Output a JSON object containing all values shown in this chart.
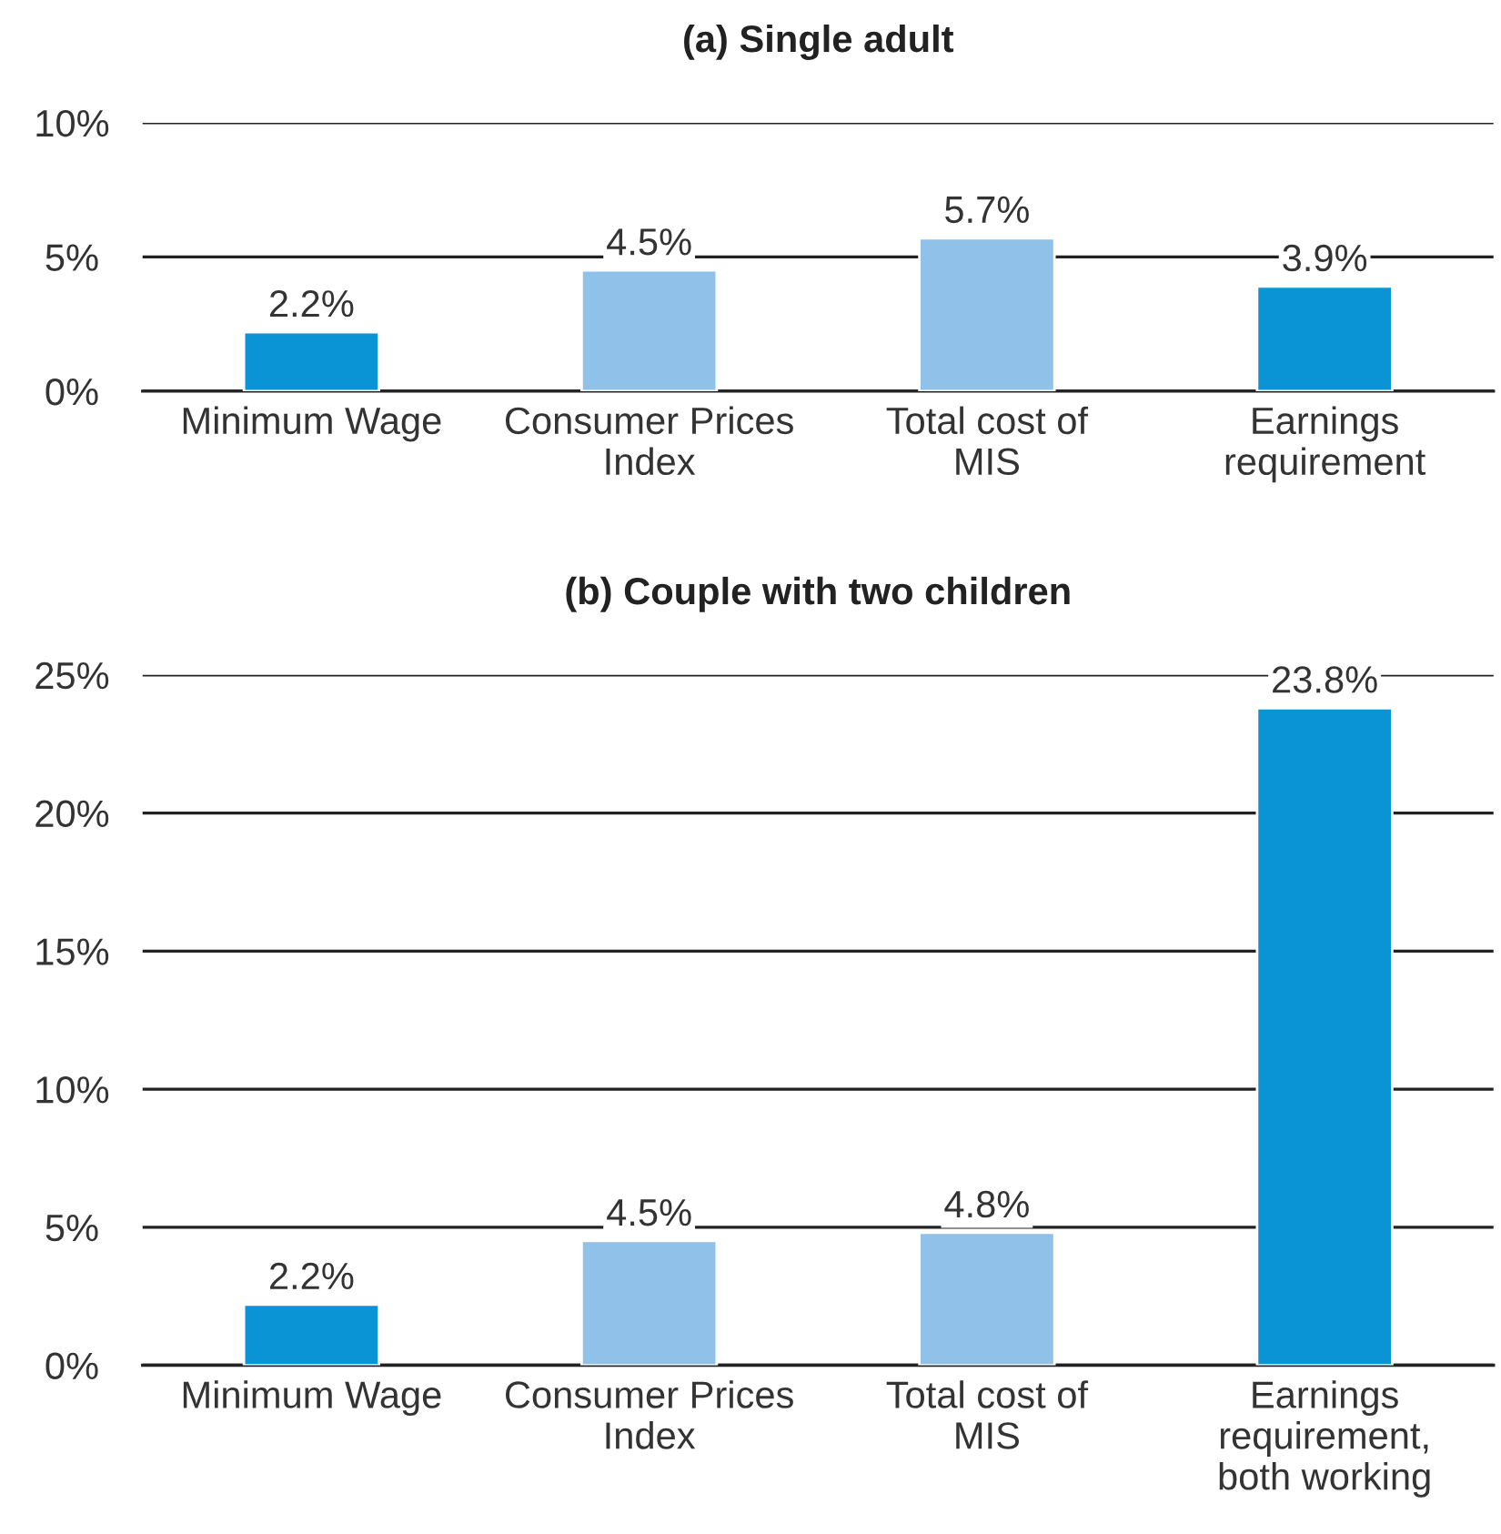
{
  "chart_data": [
    {
      "type": "bar",
      "title": "(a) Single adult",
      "categories": [
        "Minimum Wage",
        "Consumer Prices\nIndex",
        "Total cost of\nMIS",
        "Earnings\nrequirement"
      ],
      "values": [
        2.2,
        4.5,
        5.7,
        3.9
      ],
      "colors": [
        "#0a94d6",
        "#8fc1e9",
        "#8fc1e9",
        "#0a94d6"
      ],
      "value_labels": [
        "2.2%",
        "4.5%",
        "5.7%",
        "3.9%"
      ],
      "ylim": [
        0,
        10
      ],
      "yticks": [
        {
          "value": 0,
          "label": "0%"
        },
        {
          "value": 5,
          "label": "5%"
        },
        {
          "value": 10,
          "label": "10%"
        }
      ],
      "grid": "y"
    },
    {
      "type": "bar",
      "title": "(b) Couple with two children",
      "categories": [
        "Minimum Wage",
        "Consumer Prices\nIndex",
        "Total cost of\nMIS",
        "Earnings\nrequirement,\nboth working"
      ],
      "values": [
        2.2,
        4.5,
        4.8,
        23.8
      ],
      "colors": [
        "#0a94d6",
        "#8fc1e9",
        "#8fc1e9",
        "#0a94d6"
      ],
      "value_labels": [
        "2.2%",
        "4.5%",
        "4.8%",
        "23.8%"
      ],
      "ylim": [
        0,
        25
      ],
      "yticks": [
        {
          "value": 0,
          "label": "0%"
        },
        {
          "value": 5,
          "label": "5%"
        },
        {
          "value": 10,
          "label": "10%"
        },
        {
          "value": 15,
          "label": "15%"
        },
        {
          "value": 20,
          "label": "20%"
        },
        {
          "value": 25,
          "label": "25%"
        }
      ],
      "grid": "y"
    }
  ]
}
